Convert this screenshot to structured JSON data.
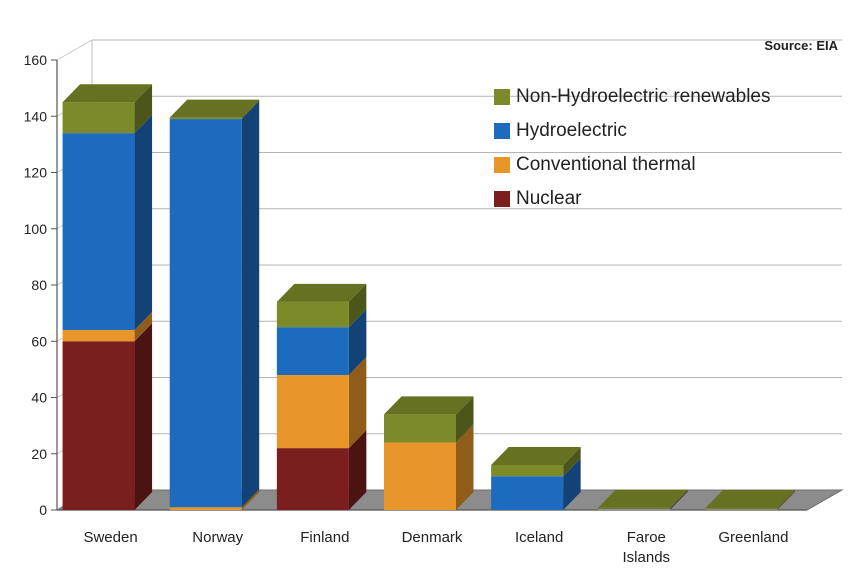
{
  "source_note": "Source: EIA",
  "chart_data": {
    "type": "bar",
    "stacked": true,
    "categories": [
      "Sweden",
      "Norway",
      "Finland",
      "Denmark",
      "Iceland",
      "Faroe Islands",
      "Greenland"
    ],
    "category_lines": [
      [
        "Sweden"
      ],
      [
        "Norway"
      ],
      [
        "Finland"
      ],
      [
        "Denmark"
      ],
      [
        "Iceland"
      ],
      [
        "Faroe",
        "Islands"
      ],
      [
        "Greenland"
      ]
    ],
    "series": [
      {
        "name": "Nuclear",
        "color": "#7a1e1e",
        "values": [
          60,
          0,
          22,
          0,
          0,
          0,
          0
        ]
      },
      {
        "name": "Conventional thermal",
        "color": "#e8952a",
        "values": [
          4,
          1,
          26,
          24,
          0,
          0.3,
          0.3
        ]
      },
      {
        "name": "Hydroelectric",
        "color": "#1d6bbf",
        "values": [
          70,
          138,
          17,
          0,
          12,
          0.3,
          0.2
        ]
      },
      {
        "name": "Non-Hydroelectric renewables",
        "color": "#7c8a2a",
        "values": [
          11,
          0.5,
          9,
          10,
          4,
          0.3,
          0.2
        ]
      }
    ],
    "ylim": [
      0,
      160
    ],
    "yticks": [
      0,
      20,
      40,
      60,
      80,
      100,
      120,
      140,
      160
    ],
    "xlabel": "",
    "ylabel": "",
    "grid": true,
    "legend_position": "top-right"
  }
}
